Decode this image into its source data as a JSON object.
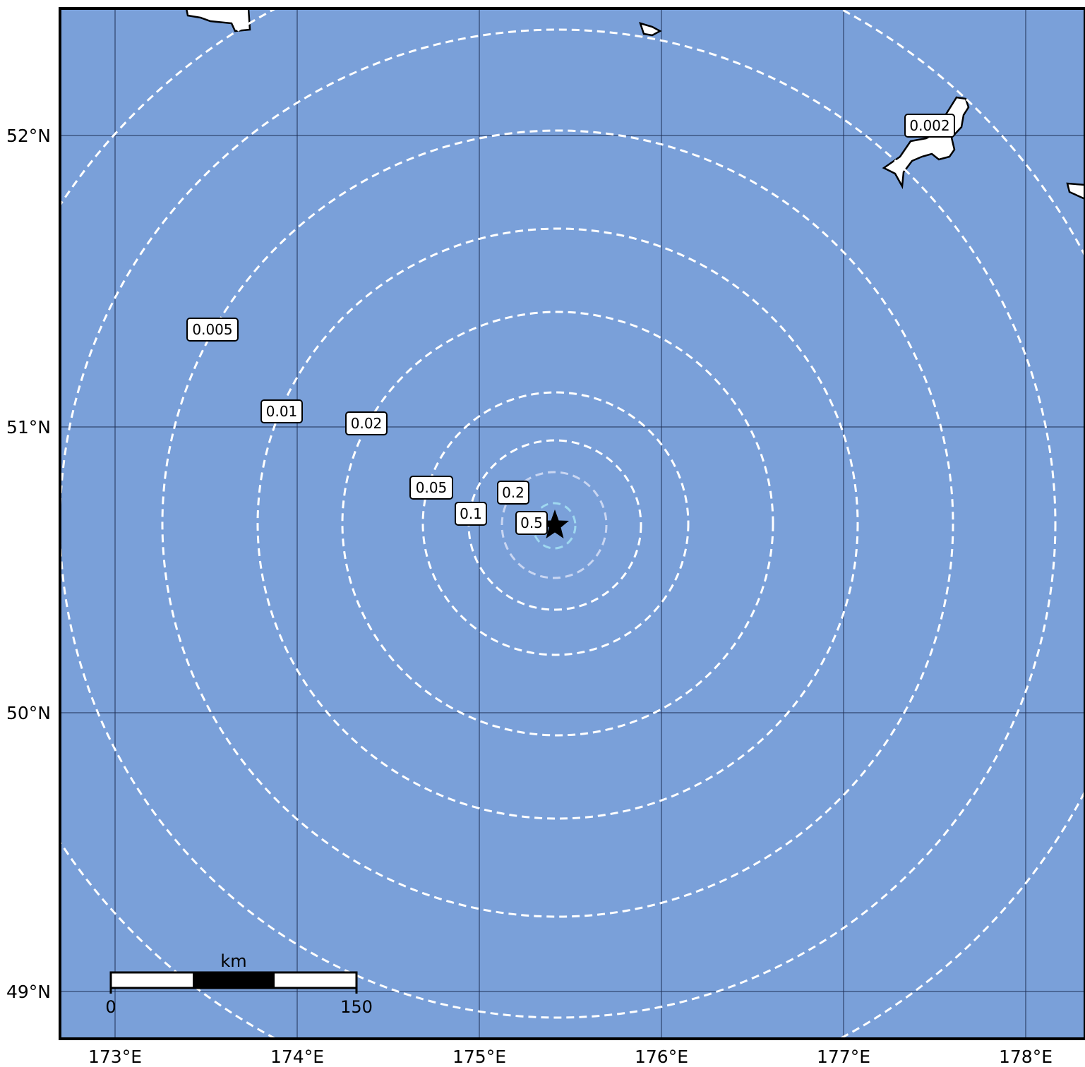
{
  "map": {
    "colors": {
      "ocean": "#7aa0d9",
      "land": "#ffffff",
      "coastline": "#000000",
      "gridlines": "#1f2f55",
      "contour_outer": "#ffffff",
      "contour_inner": "#c9d6f2",
      "contour_center": "#9fd8f0",
      "epicenter": "#000000"
    },
    "longitude_ticks": [
      "173°E",
      "174°E",
      "175°E",
      "176°E",
      "177°E",
      "178°E"
    ],
    "latitude_ticks": [
      "52°N",
      "51°N",
      "50°N",
      "49°N"
    ],
    "epicenter": {
      "lon": 175.4,
      "lat": 50.66,
      "marker": "star-icon"
    },
    "contour_labels": [
      {
        "value": "0.002"
      },
      {
        "value": "0.005"
      },
      {
        "value": "0.01"
      },
      {
        "value": "0.02"
      },
      {
        "value": "0.05"
      },
      {
        "value": "0.1"
      },
      {
        "value": "0.2"
      },
      {
        "value": "0.5"
      }
    ],
    "scale_bar": {
      "unit": "km",
      "start": "0",
      "end": "150"
    }
  }
}
